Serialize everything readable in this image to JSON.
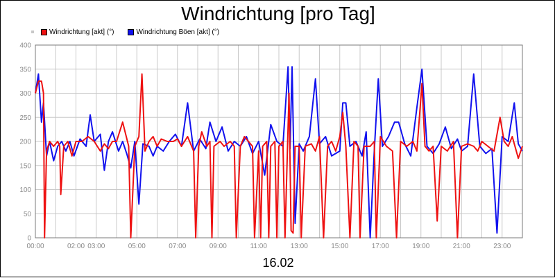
{
  "chart_data": {
    "type": "line",
    "title": "Windrichtung [pro Tag]",
    "xlabel": "16.02",
    "ylabel": "",
    "ylim": [
      0,
      400
    ],
    "yticks": [
      0,
      50,
      100,
      150,
      200,
      250,
      300,
      350,
      400
    ],
    "xlim": [
      0,
      24
    ],
    "xticks": [
      {
        "x": 0,
        "label": "00:00"
      },
      {
        "x": 2,
        "label": "02:00"
      },
      {
        "x": 3,
        "label": "03:00"
      },
      {
        "x": 5,
        "label": "05:00"
      },
      {
        "x": 7,
        "label": "07:00"
      },
      {
        "x": 9,
        "label": "09:00"
      },
      {
        "x": 11,
        "label": "11:00"
      },
      {
        "x": 13,
        "label": "13:00"
      },
      {
        "x": 15,
        "label": "15:00"
      },
      {
        "x": 17,
        "label": "17:00"
      },
      {
        "x": 19,
        "label": "19:00"
      },
      {
        "x": 21,
        "label": "21:00"
      },
      {
        "x": 23,
        "label": "23:00"
      }
    ],
    "grid": true,
    "legend_position": "top-left",
    "series": [
      {
        "name": "Windrichtung [akt] (°)",
        "color": "#ee1111",
        "points": [
          [
            0.0,
            300
          ],
          [
            0.15,
            325
          ],
          [
            0.3,
            325
          ],
          [
            0.4,
            300
          ],
          [
            0.45,
            0
          ],
          [
            0.55,
            180
          ],
          [
            0.7,
            200
          ],
          [
            0.9,
            190
          ],
          [
            1.1,
            200
          ],
          [
            1.2,
            190
          ],
          [
            1.25,
            90
          ],
          [
            1.4,
            190
          ],
          [
            1.6,
            200
          ],
          [
            1.8,
            170
          ],
          [
            2.0,
            200
          ],
          [
            2.3,
            200
          ],
          [
            2.6,
            210
          ],
          [
            2.9,
            200
          ],
          [
            3.2,
            180
          ],
          [
            3.4,
            195
          ],
          [
            3.6,
            185
          ],
          [
            3.8,
            200
          ],
          [
            4.0,
            200
          ],
          [
            4.3,
            240
          ],
          [
            4.6,
            190
          ],
          [
            4.7,
            0
          ],
          [
            4.9,
            190
          ],
          [
            5.1,
            210
          ],
          [
            5.25,
            340
          ],
          [
            5.4,
            180
          ],
          [
            5.6,
            200
          ],
          [
            5.8,
            210
          ],
          [
            6.0,
            190
          ],
          [
            6.2,
            205
          ],
          [
            6.5,
            200
          ],
          [
            6.8,
            200
          ],
          [
            7.0,
            205
          ],
          [
            7.2,
            190
          ],
          [
            7.35,
            200
          ],
          [
            7.5,
            210
          ],
          [
            7.8,
            180
          ],
          [
            7.9,
            0
          ],
          [
            8.05,
            190
          ],
          [
            8.2,
            220
          ],
          [
            8.45,
            190
          ],
          [
            8.6,
            200
          ],
          [
            8.7,
            0
          ],
          [
            8.8,
            190
          ],
          [
            9.1,
            200
          ],
          [
            9.3,
            190
          ],
          [
            9.6,
            200
          ],
          [
            9.8,
            190
          ],
          [
            9.9,
            0
          ],
          [
            10.1,
            190
          ],
          [
            10.3,
            210
          ],
          [
            10.5,
            200
          ],
          [
            10.7,
            190
          ],
          [
            10.8,
            0
          ],
          [
            11.0,
            180
          ],
          [
            11.1,
            0
          ],
          [
            11.2,
            190
          ],
          [
            11.4,
            200
          ],
          [
            11.5,
            0
          ],
          [
            11.6,
            190
          ],
          [
            11.8,
            200
          ],
          [
            11.9,
            0
          ],
          [
            12.0,
            190
          ],
          [
            12.2,
            200
          ],
          [
            12.3,
            0
          ],
          [
            12.5,
            300
          ],
          [
            12.6,
            15
          ],
          [
            12.7,
            10
          ],
          [
            12.8,
            190
          ],
          [
            13.0,
            190
          ],
          [
            13.1,
            0
          ],
          [
            13.3,
            190
          ],
          [
            13.6,
            195
          ],
          [
            13.8,
            180
          ],
          [
            14.0,
            210
          ],
          [
            14.2,
            0
          ],
          [
            14.4,
            190
          ],
          [
            14.6,
            200
          ],
          [
            14.8,
            180
          ],
          [
            15.0,
            210
          ],
          [
            15.15,
            260
          ],
          [
            15.3,
            190
          ],
          [
            15.5,
            0
          ],
          [
            15.7,
            200
          ],
          [
            15.9,
            190
          ],
          [
            16.0,
            0
          ],
          [
            16.2,
            190
          ],
          [
            16.5,
            190
          ],
          [
            16.7,
            200
          ],
          [
            16.8,
            0
          ],
          [
            17.0,
            210
          ],
          [
            17.3,
            190
          ],
          [
            17.6,
            180
          ],
          [
            17.8,
            0
          ],
          [
            18.0,
            200
          ],
          [
            18.3,
            190
          ],
          [
            18.6,
            200
          ],
          [
            18.8,
            180
          ],
          [
            19.05,
            320
          ],
          [
            19.2,
            190
          ],
          [
            19.4,
            180
          ],
          [
            19.6,
            190
          ],
          [
            19.8,
            35
          ],
          [
            20.0,
            190
          ],
          [
            20.3,
            180
          ],
          [
            20.6,
            200
          ],
          [
            20.8,
            0
          ],
          [
            21.0,
            190
          ],
          [
            21.3,
            195
          ],
          [
            21.6,
            190
          ],
          [
            21.8,
            180
          ],
          [
            22.0,
            200
          ],
          [
            22.3,
            190
          ],
          [
            22.6,
            180
          ],
          [
            22.9,
            250
          ],
          [
            23.1,
            200
          ],
          [
            23.3,
            190
          ],
          [
            23.5,
            210
          ],
          [
            23.8,
            165
          ],
          [
            24.0,
            190
          ]
        ]
      },
      {
        "name": "Windrichtung Böen [akt] (°)",
        "color": "#1111ee",
        "points": [
          [
            0.0,
            300
          ],
          [
            0.15,
            340
          ],
          [
            0.3,
            240
          ],
          [
            0.4,
            280
          ],
          [
            0.55,
            170
          ],
          [
            0.7,
            200
          ],
          [
            0.9,
            160
          ],
          [
            1.1,
            190
          ],
          [
            1.3,
            200
          ],
          [
            1.5,
            180
          ],
          [
            1.7,
            200
          ],
          [
            1.9,
            170
          ],
          [
            2.2,
            205
          ],
          [
            2.5,
            190
          ],
          [
            2.7,
            255
          ],
          [
            2.9,
            200
          ],
          [
            3.2,
            215
          ],
          [
            3.4,
            140
          ],
          [
            3.6,
            200
          ],
          [
            3.8,
            220
          ],
          [
            4.1,
            180
          ],
          [
            4.3,
            200
          ],
          [
            4.5,
            175
          ],
          [
            4.7,
            145
          ],
          [
            4.9,
            200
          ],
          [
            5.1,
            70
          ],
          [
            5.3,
            195
          ],
          [
            5.6,
            190
          ],
          [
            5.8,
            170
          ],
          [
            6.0,
            190
          ],
          [
            6.3,
            180
          ],
          [
            6.6,
            200
          ],
          [
            6.9,
            215
          ],
          [
            7.2,
            190
          ],
          [
            7.5,
            280
          ],
          [
            7.8,
            180
          ],
          [
            8.1,
            205
          ],
          [
            8.4,
            185
          ],
          [
            8.6,
            240
          ],
          [
            8.9,
            200
          ],
          [
            9.2,
            230
          ],
          [
            9.5,
            180
          ],
          [
            9.8,
            200
          ],
          [
            10.1,
            190
          ],
          [
            10.4,
            210
          ],
          [
            10.7,
            175
          ],
          [
            11.0,
            200
          ],
          [
            11.3,
            130
          ],
          [
            11.6,
            235
          ],
          [
            11.9,
            200
          ],
          [
            12.2,
            190
          ],
          [
            12.45,
            355
          ],
          [
            12.55,
            185
          ],
          [
            12.65,
            355
          ],
          [
            12.8,
            30
          ],
          [
            13.0,
            195
          ],
          [
            13.2,
            180
          ],
          [
            13.5,
            210
          ],
          [
            13.8,
            330
          ],
          [
            14.0,
            195
          ],
          [
            14.3,
            210
          ],
          [
            14.6,
            170
          ],
          [
            15.0,
            180
          ],
          [
            15.15,
            280
          ],
          [
            15.3,
            280
          ],
          [
            15.5,
            190
          ],
          [
            15.8,
            200
          ],
          [
            16.1,
            170
          ],
          [
            16.3,
            220
          ],
          [
            16.5,
            0
          ],
          [
            16.7,
            180
          ],
          [
            16.9,
            330
          ],
          [
            17.1,
            190
          ],
          [
            17.4,
            210
          ],
          [
            17.7,
            240
          ],
          [
            17.9,
            240
          ],
          [
            18.2,
            195
          ],
          [
            18.5,
            170
          ],
          [
            18.8,
            270
          ],
          [
            19.05,
            350
          ],
          [
            19.3,
            190
          ],
          [
            19.6,
            175
          ],
          [
            19.9,
            195
          ],
          [
            20.2,
            230
          ],
          [
            20.5,
            185
          ],
          [
            20.8,
            205
          ],
          [
            21.0,
            180
          ],
          [
            21.3,
            190
          ],
          [
            21.6,
            340
          ],
          [
            21.9,
            190
          ],
          [
            22.2,
            175
          ],
          [
            22.5,
            185
          ],
          [
            22.75,
            10
          ],
          [
            23.0,
            210
          ],
          [
            23.3,
            200
          ],
          [
            23.6,
            280
          ],
          [
            23.8,
            195
          ],
          [
            24.0,
            180
          ]
        ]
      }
    ]
  }
}
